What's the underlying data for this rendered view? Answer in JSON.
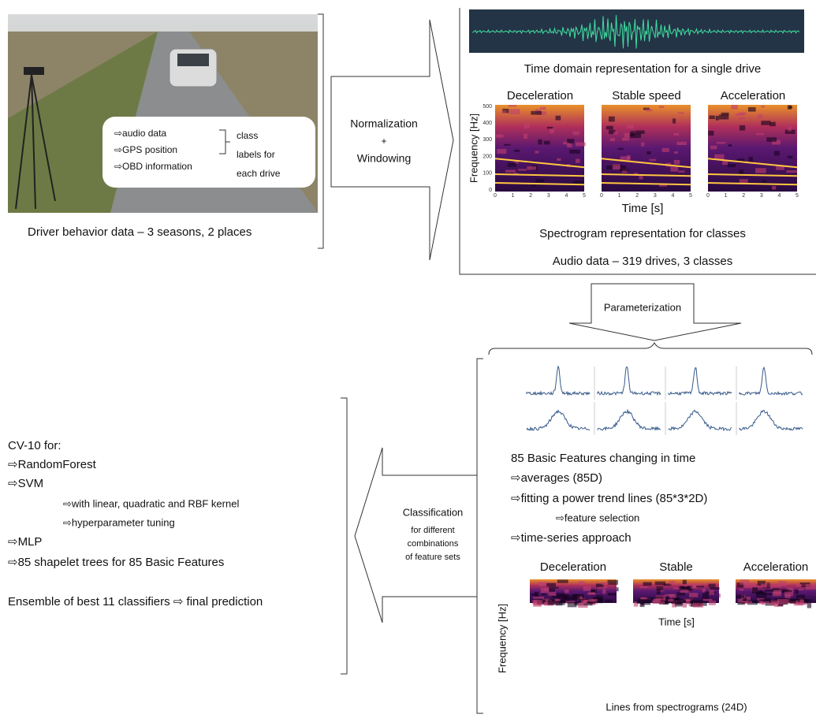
{
  "photo": {
    "items": [
      "⇨audio data",
      "⇨GPS position",
      "⇨OBD information"
    ],
    "class_labels": [
      "class",
      "labels for",
      "each drive"
    ],
    "caption": "Driver behavior data – 3 seasons, 2 places"
  },
  "arrow_normalization": {
    "lines": [
      "Normalization",
      "+",
      "Windowing"
    ]
  },
  "audio_panel": {
    "waveform_caption": "Time domain representation for a single drive",
    "classes": [
      "Deceleration",
      "Stable speed",
      "Acceleration"
    ],
    "y_label": "Frequency [Hz]",
    "y_ticks": [
      "500",
      "400",
      "300",
      "200",
      "100",
      "0"
    ],
    "x_ticks": [
      "0",
      "1",
      "2",
      "3",
      "4",
      "5"
    ],
    "x_label": "Time [s]",
    "spectrogram_caption": "Spectrogram representation for classes",
    "summary": "Audio data – 319 drives, 3 classes"
  },
  "arrow_parameterization": {
    "label": "Parameterization"
  },
  "features_panel": {
    "title": "85 Basic Features changing in time",
    "items": [
      "⇨averages (85D)",
      "⇨fitting a power trend lines (85*3*2D)",
      "⇨feature selection",
      "⇨time-series approach"
    ],
    "classes": [
      "Deceleration",
      "Stable",
      "Acceleration"
    ],
    "y_label": "Frequency [Hz]",
    "x_label": "Time [s]",
    "caption": "Lines from spectrograms (24D)"
  },
  "arrow_classification": {
    "title": "Classification",
    "lines": [
      "for different",
      "combinations",
      "of feature sets"
    ]
  },
  "classifiers": {
    "header": "CV-10 for:",
    "items": [
      "⇨RandomForest",
      "⇨SVM",
      "⇨with linear, quadratic and RBF kernel",
      "⇨hyperparameter tuning",
      "⇨MLP",
      "⇨85 shapelet trees for 85 Basic Features"
    ],
    "ensemble": "Ensemble of best 11 classifiers ⇨ final prediction"
  }
}
